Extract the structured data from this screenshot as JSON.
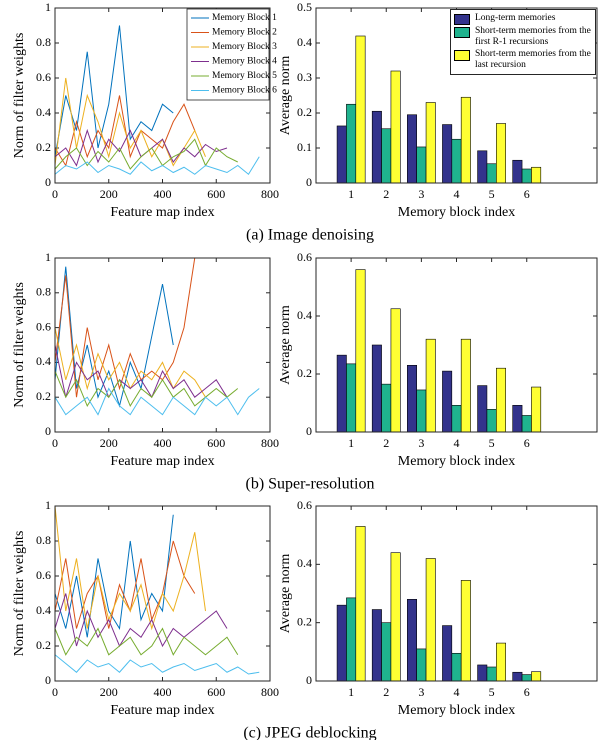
{
  "captions": [
    "(a) Image denoising",
    "(b) Super-resolution",
    "(c) JPEG deblocking"
  ],
  "chart_data": [
    {
      "type": "line",
      "xlabel": "Feature map index",
      "ylabel": "Norm of filter weights",
      "x": [
        0,
        40,
        80,
        120,
        160,
        200,
        240,
        280,
        320,
        360,
        400,
        440,
        480,
        520,
        560,
        600,
        640,
        680,
        720,
        760
      ],
      "xlim": [
        0,
        800
      ],
      "xticks": [
        0,
        200,
        400,
        600,
        800
      ],
      "ylim": [
        0,
        1
      ],
      "yticks": [
        0,
        0.2,
        0.4,
        0.6,
        0.8,
        1
      ],
      "legend": "upper right",
      "series": [
        {
          "name": "Memory Block 1",
          "color": "#0072bd",
          "values": [
            0.15,
            0.5,
            0.3,
            0.75,
            0.2,
            0.45,
            0.9,
            0.25,
            0.35,
            0.3,
            0.45,
            0.4,
            null,
            null,
            null,
            null,
            null,
            null,
            null,
            null
          ]
        },
        {
          "name": "Memory Block 2",
          "color": "#d95319",
          "values": [
            0.2,
            0.1,
            0.35,
            0.15,
            0.3,
            0.2,
            0.5,
            0.15,
            0.3,
            0.25,
            0.2,
            0.35,
            0.45,
            0.3,
            null,
            null,
            null,
            null,
            null,
            null
          ]
        },
        {
          "name": "Memory Block 3",
          "color": "#edb120",
          "values": [
            0.1,
            0.6,
            0.2,
            0.5,
            0.35,
            0.15,
            0.4,
            0.2,
            0.3,
            0.15,
            0.25,
            0.1,
            0.2,
            0.3,
            0.15,
            null,
            null,
            null,
            null,
            null
          ]
        },
        {
          "name": "Memory Block 4",
          "color": "#7e2f8e",
          "values": [
            0.15,
            0.2,
            0.1,
            0.3,
            0.12,
            0.25,
            0.18,
            0.3,
            0.15,
            0.2,
            0.25,
            0.12,
            0.2,
            0.15,
            0.22,
            0.18,
            0.2,
            null,
            null,
            null
          ]
        },
        {
          "name": "Memory Block 5",
          "color": "#77ac30",
          "values": [
            0.08,
            0.15,
            0.2,
            0.1,
            0.18,
            0.12,
            0.2,
            0.08,
            0.15,
            0.2,
            0.1,
            0.15,
            0.18,
            0.25,
            0.1,
            0.2,
            0.15,
            0.12,
            null,
            null
          ]
        },
        {
          "name": "Memory Block 6",
          "color": "#4dbeee",
          "values": [
            0.05,
            0.1,
            0.08,
            0.12,
            0.06,
            0.1,
            0.08,
            0.05,
            0.12,
            0.07,
            0.1,
            0.06,
            0.09,
            0.05,
            0.1,
            0.08,
            0.06,
            0.1,
            0.05,
            0.15
          ]
        }
      ]
    },
    {
      "type": "bar",
      "xlabel": "Memory block index",
      "ylabel": "Average norm",
      "x": [
        1,
        2,
        3,
        4,
        5,
        6
      ],
      "xlim": [
        0,
        8
      ],
      "xticks": [
        1,
        2,
        3,
        4,
        5,
        6
      ],
      "ylim": [
        0,
        0.5
      ],
      "yticks": [
        0,
        0.1,
        0.2,
        0.3,
        0.4,
        0.5
      ],
      "legend": "upper right",
      "series": [
        {
          "name": "Long-term memories",
          "color": "#33338c",
          "values": [
            0.163,
            0.205,
            0.195,
            0.167,
            0.092,
            0.065
          ]
        },
        {
          "name": "Short-term memories from the first R-1 recursions",
          "color": "#1fb38e",
          "values": [
            0.225,
            0.155,
            0.103,
            0.125,
            0.055,
            0.04
          ]
        },
        {
          "name": "Short-term memories from the last recursion",
          "color": "#ffff33",
          "values": [
            0.42,
            0.32,
            0.23,
            0.245,
            0.17,
            0.045
          ]
        }
      ]
    },
    {
      "type": "line",
      "xlabel": "Feature map index",
      "ylabel": "Norm of filter weights",
      "x": [
        0,
        40,
        80,
        120,
        160,
        200,
        240,
        280,
        320,
        360,
        400,
        440,
        480,
        520,
        560,
        600,
        640,
        680,
        720,
        760
      ],
      "xlim": [
        0,
        800
      ],
      "xticks": [
        0,
        200,
        400,
        600,
        800
      ],
      "ylim": [
        0,
        1
      ],
      "yticks": [
        0,
        0.2,
        0.4,
        0.6,
        0.8,
        1
      ],
      "series": [
        {
          "color": "#0072bd",
          "values": [
            0.3,
            0.95,
            0.25,
            0.5,
            0.2,
            0.35,
            0.15,
            0.4,
            0.25,
            0.55,
            0.85,
            0.5,
            null,
            null,
            null,
            null,
            null,
            null,
            null,
            null
          ]
        },
        {
          "color": "#d95319",
          "values": [
            0.4,
            0.9,
            0.2,
            0.6,
            0.3,
            0.5,
            0.25,
            0.45,
            0.3,
            0.35,
            0.3,
            0.4,
            0.6,
            1.0,
            null,
            null,
            null,
            null,
            null,
            null
          ]
        },
        {
          "color": "#edb120",
          "values": [
            0.6,
            0.3,
            0.5,
            0.25,
            0.45,
            0.3,
            0.4,
            0.25,
            0.35,
            0.3,
            0.4,
            0.25,
            0.35,
            0.3,
            0.2,
            null,
            null,
            null,
            null,
            null
          ]
        },
        {
          "color": "#7e2f8e",
          "values": [
            0.5,
            0.2,
            0.4,
            0.3,
            0.35,
            0.2,
            0.3,
            0.25,
            0.3,
            0.2,
            0.35,
            0.25,
            0.3,
            0.2,
            0.25,
            0.3,
            0.2,
            null,
            null,
            null
          ]
        },
        {
          "color": "#77ac30",
          "values": [
            0.35,
            0.2,
            0.3,
            0.15,
            0.25,
            0.2,
            0.3,
            0.15,
            0.25,
            0.2,
            0.3,
            0.2,
            0.25,
            0.15,
            0.2,
            0.25,
            0.2,
            0.25,
            null,
            null
          ]
        },
        {
          "color": "#4dbeee",
          "values": [
            0.2,
            0.1,
            0.15,
            0.2,
            0.1,
            0.25,
            0.15,
            0.1,
            0.2,
            0.15,
            0.1,
            0.2,
            0.15,
            0.1,
            0.2,
            0.15,
            0.2,
            0.1,
            0.2,
            0.25
          ]
        }
      ]
    },
    {
      "type": "bar",
      "xlabel": "Memory block index",
      "ylabel": "Average norm",
      "x": [
        1,
        2,
        3,
        4,
        5,
        6
      ],
      "xlim": [
        0,
        8
      ],
      "xticks": [
        1,
        2,
        3,
        4,
        5,
        6
      ],
      "ylim": [
        0,
        0.6
      ],
      "yticks": [
        0,
        0.2,
        0.4,
        0.6
      ],
      "series": [
        {
          "color": "#33338c",
          "values": [
            0.265,
            0.3,
            0.23,
            0.21,
            0.16,
            0.092
          ]
        },
        {
          "color": "#1fb38e",
          "values": [
            0.235,
            0.165,
            0.145,
            0.092,
            0.078,
            0.057
          ]
        },
        {
          "color": "#ffff33",
          "values": [
            0.56,
            0.425,
            0.32,
            0.32,
            0.22,
            0.155
          ]
        }
      ]
    },
    {
      "type": "line",
      "xlabel": "Feature map index",
      "ylabel": "Norm of filter weights",
      "x": [
        0,
        40,
        80,
        120,
        160,
        200,
        240,
        280,
        320,
        360,
        400,
        440,
        480,
        520,
        560,
        600,
        640,
        680,
        720,
        760
      ],
      "xlim": [
        0,
        800
      ],
      "xticks": [
        0,
        200,
        400,
        600,
        800
      ],
      "ylim": [
        0,
        1
      ],
      "yticks": [
        0,
        0.2,
        0.4,
        0.6,
        0.8,
        1
      ],
      "series": [
        {
          "color": "#0072bd",
          "values": [
            0.5,
            0.3,
            0.6,
            0.25,
            0.7,
            0.4,
            0.3,
            0.8,
            0.35,
            0.5,
            0.4,
            0.95,
            null,
            null,
            null,
            null,
            null,
            null,
            null,
            null
          ]
        },
        {
          "color": "#d95319",
          "values": [
            0.4,
            0.7,
            0.3,
            0.5,
            0.6,
            0.3,
            0.55,
            0.4,
            0.7,
            0.35,
            0.5,
            0.8,
            0.6,
            0.5,
            null,
            null,
            null,
            null,
            null,
            null
          ]
        },
        {
          "color": "#edb120",
          "values": [
            1.0,
            0.4,
            0.7,
            0.3,
            0.6,
            0.35,
            0.5,
            0.4,
            0.55,
            0.3,
            0.5,
            0.4,
            0.6,
            0.85,
            0.4,
            null,
            null,
            null,
            null,
            null
          ]
        },
        {
          "color": "#7e2f8e",
          "values": [
            0.3,
            0.5,
            0.2,
            0.4,
            0.25,
            0.35,
            0.2,
            0.3,
            0.25,
            0.35,
            0.2,
            0.3,
            0.25,
            0.3,
            0.35,
            0.4,
            0.3,
            null,
            null,
            null
          ]
        },
        {
          "color": "#77ac30",
          "values": [
            0.3,
            0.15,
            0.25,
            0.2,
            0.3,
            0.15,
            0.2,
            0.25,
            0.15,
            0.2,
            0.3,
            0.15,
            0.25,
            0.2,
            0.15,
            0.2,
            0.25,
            0.15,
            null,
            null
          ]
        },
        {
          "color": "#4dbeee",
          "values": [
            0.15,
            0.1,
            0.05,
            0.12,
            0.08,
            0.1,
            0.05,
            0.12,
            0.08,
            0.1,
            0.05,
            0.08,
            0.1,
            0.06,
            0.08,
            0.1,
            0.05,
            0.08,
            0.04,
            0.05
          ]
        }
      ]
    },
    {
      "type": "bar",
      "xlabel": "Memory block index",
      "ylabel": "Average norm",
      "x": [
        1,
        2,
        3,
        4,
        5,
        6
      ],
      "xlim": [
        0,
        8
      ],
      "xticks": [
        1,
        2,
        3,
        4,
        5,
        6
      ],
      "ylim": [
        0,
        0.6
      ],
      "yticks": [
        0,
        0.2,
        0.4,
        0.6
      ],
      "series": [
        {
          "color": "#33338c",
          "values": [
            0.26,
            0.245,
            0.28,
            0.19,
            0.055,
            0.03
          ]
        },
        {
          "color": "#1fb38e",
          "values": [
            0.285,
            0.2,
            0.11,
            0.095,
            0.048,
            0.022
          ]
        },
        {
          "color": "#ffff33",
          "values": [
            0.53,
            0.44,
            0.42,
            0.345,
            0.13,
            0.032
          ]
        }
      ]
    }
  ]
}
